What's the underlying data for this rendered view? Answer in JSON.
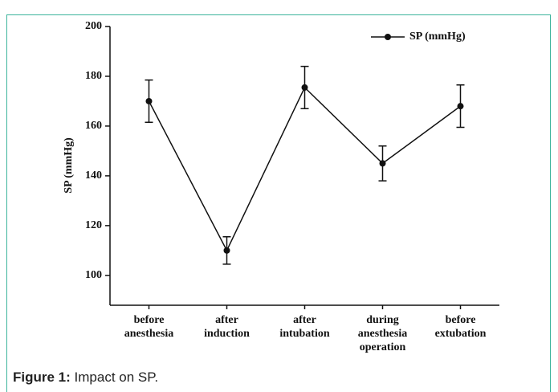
{
  "chart_data": {
    "type": "line",
    "categories": [
      "before anesthesia",
      "after induction",
      "after intubation",
      "during anesthesia operation",
      "before extubation"
    ],
    "series": [
      {
        "name": "SP (mmHg)",
        "color": "#111111",
        "values": [
          170,
          110,
          175.5,
          145,
          168
        ],
        "errors": [
          8.5,
          5.5,
          8.5,
          7,
          8.5
        ]
      }
    ],
    "y_label": "SP (mmHg)",
    "ylim": [
      88,
      200
    ],
    "yticks": [
      100,
      120,
      140,
      160,
      180,
      200
    ],
    "legend": "top-right"
  },
  "caption": {
    "label": "Figure 1:",
    "text": "Impact on SP."
  }
}
